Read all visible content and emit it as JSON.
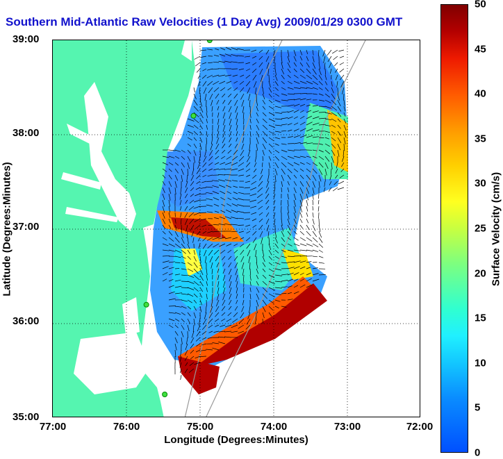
{
  "title": "Southern Mid-Atlantic Raw Velocities (1 Day Avg) 2009/01/29 0300 GMT",
  "axes": {
    "x_title": "Longitude (Degrees:Minutes)",
    "y_title": "Latitude (Degrees:Minutes)",
    "x_ticks": [
      "77:00",
      "76:00",
      "75:00",
      "74:00",
      "73:00",
      "72:00"
    ],
    "y_ticks": [
      "39:00",
      "38:00",
      "37:00",
      "36:00",
      "35:00"
    ]
  },
  "colorbar": {
    "label": "Surface Velocity (cm/s)",
    "ticks": [
      "50",
      "45",
      "40",
      "35",
      "30",
      "25",
      "20",
      "15",
      "10",
      "5",
      "0"
    ],
    "min": 0,
    "max": 50
  },
  "map": {
    "lon_range": [
      -77,
      -72
    ],
    "lat_range": [
      35,
      39
    ],
    "land_color": "#55f5b0",
    "ocean_color": "#ffffff",
    "grid": true
  },
  "stations": [
    {
      "lon": -74.87,
      "lat": 39.0
    },
    {
      "lon": -75.09,
      "lat": 38.2
    },
    {
      "lon": -75.73,
      "lat": 36.2
    },
    {
      "lon": -75.48,
      "lat": 35.25
    }
  ]
}
